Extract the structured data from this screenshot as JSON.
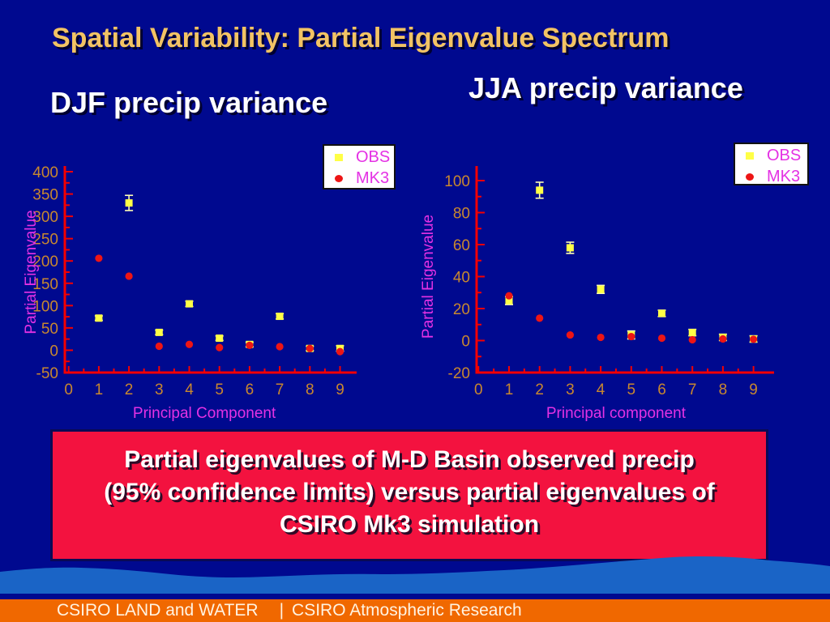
{
  "slide": {
    "title": "Spatial Variability: Partial Eigenvalue Spectrum",
    "caption_lines": [
      "Partial eigenvalues of M-D Basin observed precip",
      "(95% confidence limits) versus partial eigenvalues of",
      "CSIRO Mk3 simulation"
    ],
    "footer": {
      "left": "CSIRO LAND and WATER",
      "separator": "|",
      "right": "CSIRO Atmospheric Research"
    }
  },
  "colors": {
    "background": "#00098F",
    "title_text": "#F2C364",
    "header_text": "#FFFFFF",
    "axis_line": "#F40000",
    "tick_label": "#C8882F",
    "axis_label": "#E431E4",
    "legend_text": "#E431E4",
    "obs_marker": "#FFFF46",
    "mk3_marker": "#ED1515",
    "error_bar": "#FFFFB4",
    "caption_bg": "#F3123F",
    "caption_border": "#0A0A55",
    "wave_blue": "#1A64C6",
    "footer_bar": "#F06800",
    "footer_text": "#FFF3E2"
  },
  "chart_data": [
    {
      "type": "scatter",
      "title": "DJF precip variance",
      "xlabel": "Principal Component",
      "ylabel": "Partial Eigenvalue",
      "x": [
        1,
        2,
        3,
        4,
        5,
        6,
        7,
        8,
        9
      ],
      "xticks": [
        0,
        1,
        2,
        3,
        4,
        5,
        6,
        7,
        8,
        9
      ],
      "yticks": [
        -50,
        0,
        50,
        100,
        150,
        200,
        250,
        300,
        350,
        400
      ],
      "ylim": [
        -50,
        400
      ],
      "xlim": [
        0,
        9.5
      ],
      "y_minor_step": 25,
      "grid": false,
      "legend_position": "top-right",
      "series": [
        {
          "name": "OBS",
          "marker": "square",
          "values": [
            72,
            330,
            40,
            104,
            27,
            13,
            76,
            4,
            4
          ],
          "errors": [
            5,
            17,
            5,
            6,
            5,
            5,
            6,
            5,
            6
          ]
        },
        {
          "name": "MK3",
          "marker": "circle",
          "values": [
            206,
            166,
            9,
            13,
            6,
            11,
            8,
            4,
            -3
          ],
          "errors": null
        }
      ]
    },
    {
      "type": "scatter",
      "title": "JJA precip variance",
      "xlabel": "Principal component",
      "ylabel": "Partial Eigenvalue",
      "x": [
        1,
        2,
        3,
        4,
        5,
        6,
        7,
        8,
        9
      ],
      "xticks": [
        0,
        1,
        2,
        3,
        4,
        5,
        6,
        7,
        8,
        9
      ],
      "yticks": [
        -20,
        0,
        20,
        40,
        60,
        80,
        100
      ],
      "ylim": [
        -20,
        100
      ],
      "xlim": [
        0,
        9.5
      ],
      "y_minor_step": 10,
      "grid": false,
      "legend_position": "top-right",
      "series": [
        {
          "name": "OBS",
          "marker": "square",
          "values": [
            25,
            94,
            58,
            32,
            3.5,
            17,
            5,
            2,
            1
          ],
          "errors": [
            2.5,
            5,
            3.5,
            2.5,
            2.5,
            2,
            2,
            2,
            2
          ]
        },
        {
          "name": "MK3",
          "marker": "circle",
          "values": [
            28,
            14,
            3.5,
            2,
            2.5,
            1.5,
            0.5,
            1,
            0.8
          ],
          "errors": null
        }
      ]
    }
  ]
}
